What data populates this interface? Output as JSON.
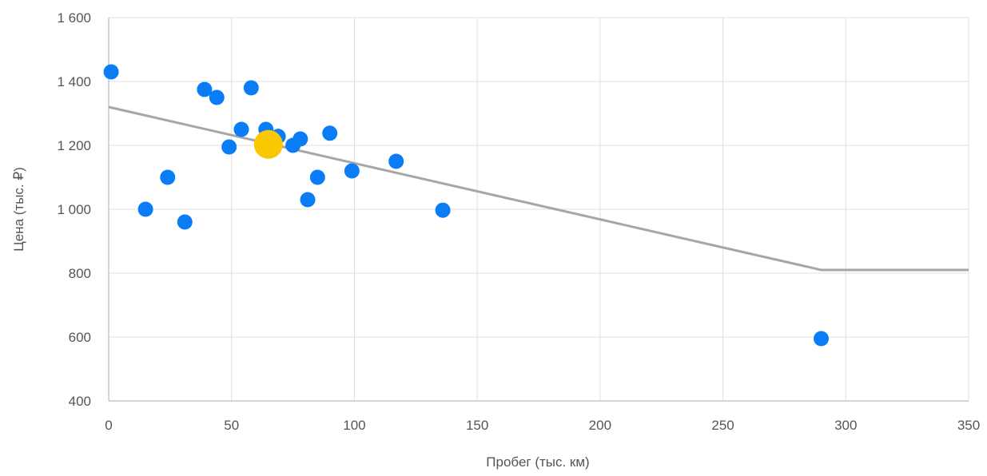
{
  "chart_data": {
    "type": "scatter",
    "xlabel": "Пробег (тыс. км)",
    "ylabel": "Цена (тыс. ₽)",
    "xlim": [
      0,
      350
    ],
    "ylim": [
      400,
      1600
    ],
    "x_ticks": [
      0,
      50,
      100,
      150,
      200,
      250,
      300,
      350
    ],
    "y_ticks": [
      400,
      600,
      800,
      1000,
      1200,
      1400,
      1600
    ],
    "x_tick_labels": [
      "0",
      "50",
      "100",
      "150",
      "200",
      "250",
      "300",
      "350"
    ],
    "y_tick_labels": [
      "400",
      "600",
      "800",
      "1 000",
      "1 200",
      "1 400",
      "1 600"
    ],
    "grid": true,
    "colors": {
      "points": "#0a7cf5",
      "highlight": "#f8c800",
      "trend": "#a6a6a6"
    },
    "points": [
      {
        "x": 1,
        "y": 1430
      },
      {
        "x": 15,
        "y": 1000
      },
      {
        "x": 24,
        "y": 1100
      },
      {
        "x": 31,
        "y": 960
      },
      {
        "x": 39,
        "y": 1375
      },
      {
        "x": 44,
        "y": 1350
      },
      {
        "x": 49,
        "y": 1195
      },
      {
        "x": 54,
        "y": 1250
      },
      {
        "x": 58,
        "y": 1380
      },
      {
        "x": 64,
        "y": 1250
      },
      {
        "x": 69,
        "y": 1228
      },
      {
        "x": 75,
        "y": 1200
      },
      {
        "x": 78,
        "y": 1220
      },
      {
        "x": 81,
        "y": 1030
      },
      {
        "x": 85,
        "y": 1100
      },
      {
        "x": 90,
        "y": 1238
      },
      {
        "x": 99,
        "y": 1120
      },
      {
        "x": 117,
        "y": 1150
      },
      {
        "x": 136,
        "y": 997
      },
      {
        "x": 290,
        "y": 595
      }
    ],
    "highlight": {
      "x": 65,
      "y": 1203
    },
    "trend_line": [
      {
        "x": 0,
        "y": 1320
      },
      {
        "x": 290,
        "y": 810
      },
      {
        "x": 350,
        "y": 810
      }
    ]
  }
}
